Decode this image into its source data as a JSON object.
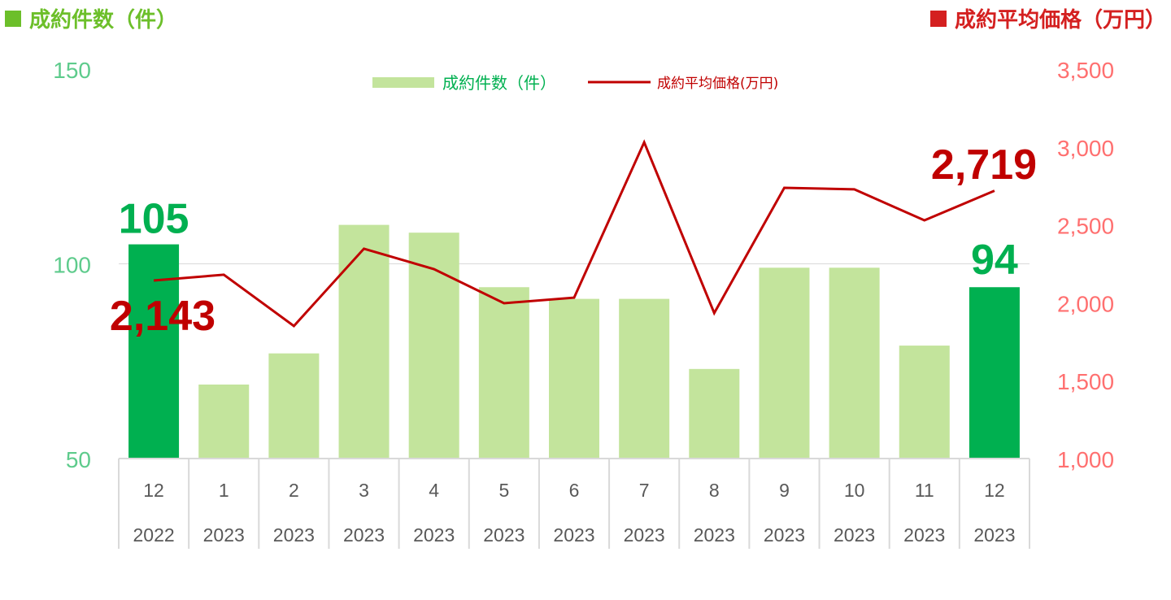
{
  "titles": {
    "left": "成約件数（件）",
    "right": "成約平均価格（万円）"
  },
  "colors": {
    "bar": "#c3e49c",
    "bar_highlight": "#00b050",
    "line": "#c00000",
    "left_axis": "#5ecb8c",
    "right_axis": "#ff7070",
    "left_title": "#6cbf2a",
    "right_title": "#d42020"
  },
  "chart_data": {
    "type": "bar+line",
    "categories": [
      "12",
      "1",
      "2",
      "3",
      "4",
      "5",
      "6",
      "7",
      "8",
      "9",
      "10",
      "11",
      "12"
    ],
    "category_years": [
      "2022",
      "2023",
      "2023",
      "2023",
      "2023",
      "2023",
      "2023",
      "2023",
      "2023",
      "2023",
      "2023",
      "2023",
      "2023"
    ],
    "series": [
      {
        "name": "成約件数（件）",
        "type": "bar",
        "axis": "left",
        "values": [
          105,
          69,
          77,
          110,
          108,
          94,
          91,
          91,
          73,
          99,
          99,
          79,
          94
        ],
        "highlight": [
          0,
          12
        ]
      },
      {
        "name": "成約平均価格(万円)",
        "type": "line",
        "axis": "right",
        "values": [
          2143,
          2180,
          1851,
          2347,
          2216,
          1997,
          2033,
          3030,
          1934,
          2738,
          2728,
          2529,
          2719
        ]
      }
    ],
    "left_axis": {
      "ylim": [
        50,
        150
      ],
      "ticks": [
        "50",
        "100",
        "150"
      ]
    },
    "right_axis": {
      "ylim": [
        1000,
        3500
      ],
      "ticks": [
        "1,000",
        "1,500",
        "2,000",
        "2,500",
        "3,000",
        "3,500"
      ]
    },
    "data_labels": {
      "bar_first": "105",
      "bar_last": "94",
      "line_first": "2,143",
      "line_last": "2,719"
    },
    "grid": "single gridline at 100",
    "legend": "top-center"
  }
}
